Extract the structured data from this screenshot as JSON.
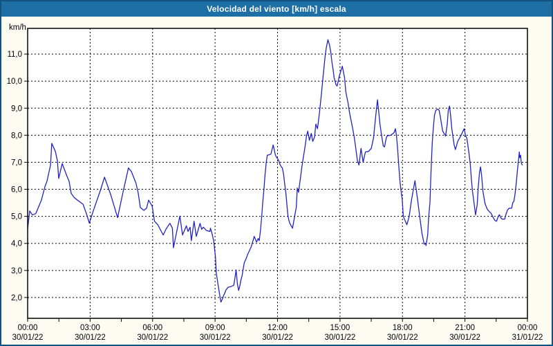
{
  "window": {
    "title": "Velocidad del viento [km/h] escala"
  },
  "chart_data": {
    "type": "line",
    "title": "Velocidad del viento [km/h] escala",
    "ylabel": "km/h",
    "xlabel": "",
    "series_name": "Velocidad del viento",
    "line_color": "#2121c8",
    "grid": "dashed-black",
    "legend": "none",
    "ylim": [
      1.23,
      11.95
    ],
    "xlim_hours": [
      0,
      24
    ],
    "minor_tick_hours": 1.5,
    "y_ticks": [
      {
        "value": 2,
        "label": "2,0"
      },
      {
        "value": 3,
        "label": "3,0"
      },
      {
        "value": 4,
        "label": "4,0"
      },
      {
        "value": 5,
        "label": "5,0"
      },
      {
        "value": 6,
        "label": "6,0"
      },
      {
        "value": 7,
        "label": "7,0"
      },
      {
        "value": 8,
        "label": "8,0"
      },
      {
        "value": 9,
        "label": "9,0"
      },
      {
        "value": 10,
        "label": "10,0"
      },
      {
        "value": 11,
        "label": "11,0"
      }
    ],
    "x_ticks": [
      {
        "hours": 0,
        "time": "00:00",
        "date": "30/01/22"
      },
      {
        "hours": 3,
        "time": "03:00",
        "date": "30/01/22"
      },
      {
        "hours": 6,
        "time": "06:00",
        "date": "30/01/22"
      },
      {
        "hours": 9,
        "time": "09:00",
        "date": "30/01/22"
      },
      {
        "hours": 12,
        "time": "12:00",
        "date": "30/01/22"
      },
      {
        "hours": 15,
        "time": "15:00",
        "date": "30/01/22"
      },
      {
        "hours": 18,
        "time": "18:00",
        "date": "30/01/22"
      },
      {
        "hours": 21,
        "time": "21:00",
        "date": "30/01/22"
      },
      {
        "hours": 24,
        "time": "00:00",
        "date": "31/01/22"
      }
    ],
    "points": [
      [
        0.0,
        4.55
      ],
      [
        0.1,
        5.2
      ],
      [
        0.23,
        5.05
      ],
      [
        0.39,
        5.1
      ],
      [
        0.66,
        5.6
      ],
      [
        0.83,
        6.1
      ],
      [
        0.93,
        6.3
      ],
      [
        1.1,
        6.9
      ],
      [
        1.16,
        7.7
      ],
      [
        1.33,
        7.4
      ],
      [
        1.43,
        7.05
      ],
      [
        1.49,
        6.4
      ],
      [
        1.66,
        6.95
      ],
      [
        1.88,
        6.5
      ],
      [
        1.99,
        6.3
      ],
      [
        2.09,
        5.85
      ],
      [
        2.23,
        5.7
      ],
      [
        2.39,
        5.6
      ],
      [
        2.66,
        5.45
      ],
      [
        2.82,
        5.1
      ],
      [
        2.96,
        4.75
      ],
      [
        3.15,
        5.2
      ],
      [
        3.49,
        5.95
      ],
      [
        3.69,
        6.45
      ],
      [
        3.99,
        5.8
      ],
      [
        4.32,
        4.95
      ],
      [
        4.58,
        5.9
      ],
      [
        4.84,
        6.79
      ],
      [
        4.98,
        6.66
      ],
      [
        5.2,
        6.23
      ],
      [
        5.31,
        5.85
      ],
      [
        5.41,
        5.33
      ],
      [
        5.58,
        5.22
      ],
      [
        5.71,
        5.3
      ],
      [
        5.81,
        5.6
      ],
      [
        5.98,
        5.38
      ],
      [
        6.09,
        4.82
      ],
      [
        6.25,
        4.69
      ],
      [
        6.42,
        4.44
      ],
      [
        6.51,
        4.31
      ],
      [
        6.64,
        4.52
      ],
      [
        6.75,
        4.65
      ],
      [
        6.83,
        4.74
      ],
      [
        6.95,
        4.56
      ],
      [
        7.0,
        3.84
      ],
      [
        7.31,
        5.01
      ],
      [
        7.44,
        4.31
      ],
      [
        7.62,
        4.65
      ],
      [
        7.7,
        4.44
      ],
      [
        7.8,
        4.6
      ],
      [
        7.86,
        4.1
      ],
      [
        7.99,
        4.82
      ],
      [
        8.1,
        4.26
      ],
      [
        8.28,
        4.74
      ],
      [
        8.36,
        4.52
      ],
      [
        8.44,
        4.6
      ],
      [
        8.58,
        4.48
      ],
      [
        8.75,
        4.44
      ],
      [
        8.78,
        4.56
      ],
      [
        8.86,
        4.35
      ],
      [
        8.94,
        4.07
      ],
      [
        9.02,
        3.49
      ],
      [
        9.06,
        2.9
      ],
      [
        9.13,
        2.55
      ],
      [
        9.19,
        2.26
      ],
      [
        9.24,
        2.0
      ],
      [
        9.28,
        1.83
      ],
      [
        9.36,
        1.96
      ],
      [
        9.41,
        2.08
      ],
      [
        9.47,
        2.17
      ],
      [
        9.52,
        2.28
      ],
      [
        9.63,
        2.38
      ],
      [
        9.74,
        2.4
      ],
      [
        9.9,
        2.45
      ],
      [
        9.94,
        2.64
      ],
      [
        10.01,
        3.02
      ],
      [
        10.07,
        2.51
      ],
      [
        10.13,
        2.26
      ],
      [
        10.19,
        2.43
      ],
      [
        10.24,
        2.64
      ],
      [
        10.3,
        2.81
      ],
      [
        10.4,
        3.28
      ],
      [
        10.5,
        3.45
      ],
      [
        10.56,
        3.58
      ],
      [
        10.74,
        3.88
      ],
      [
        10.88,
        4.26
      ],
      [
        10.99,
        4.05
      ],
      [
        11.07,
        4.18
      ],
      [
        11.12,
        4.1
      ],
      [
        11.18,
        4.48
      ],
      [
        11.24,
        4.99
      ],
      [
        11.29,
        5.51
      ],
      [
        11.35,
        6.02
      ],
      [
        11.4,
        6.53
      ],
      [
        11.46,
        7.0
      ],
      [
        11.51,
        7.26
      ],
      [
        11.62,
        7.28
      ],
      [
        11.68,
        7.3
      ],
      [
        11.79,
        7.64
      ],
      [
        11.85,
        7.43
      ],
      [
        11.9,
        7.26
      ],
      [
        11.96,
        7.17
      ],
      [
        12.01,
        7.13
      ],
      [
        12.07,
        7.04
      ],
      [
        12.12,
        6.92
      ],
      [
        12.18,
        6.83
      ],
      [
        12.23,
        6.79
      ],
      [
        12.29,
        6.57
      ],
      [
        12.34,
        6.23
      ],
      [
        12.4,
        5.85
      ],
      [
        12.45,
        5.42
      ],
      [
        12.49,
        5.08
      ],
      [
        12.54,
        4.86
      ],
      [
        12.59,
        4.74
      ],
      [
        12.72,
        4.56
      ],
      [
        12.84,
        5.08
      ],
      [
        12.9,
        5.33
      ],
      [
        12.95,
        6.05
      ],
      [
        13.01,
        5.89
      ],
      [
        13.12,
        6.52
      ],
      [
        13.17,
        6.83
      ],
      [
        13.28,
        7.38
      ],
      [
        13.34,
        7.68
      ],
      [
        13.39,
        7.98
      ],
      [
        13.45,
        8.15
      ],
      [
        13.53,
        7.81
      ],
      [
        13.62,
        8.07
      ],
      [
        13.69,
        7.77
      ],
      [
        13.78,
        7.94
      ],
      [
        13.84,
        8.41
      ],
      [
        13.92,
        8.24
      ],
      [
        14.0,
        8.75
      ],
      [
        14.06,
        9.18
      ],
      [
        14.17,
        10.03
      ],
      [
        14.28,
        10.89
      ],
      [
        14.34,
        11.23
      ],
      [
        14.42,
        11.53
      ],
      [
        14.5,
        11.32
      ],
      [
        14.56,
        11.06
      ],
      [
        14.61,
        10.72
      ],
      [
        14.67,
        10.42
      ],
      [
        14.72,
        10.12
      ],
      [
        14.81,
        9.86
      ],
      [
        14.86,
        9.82
      ],
      [
        14.97,
        10.2
      ],
      [
        15.11,
        10.55
      ],
      [
        15.22,
        10.12
      ],
      [
        15.28,
        9.6
      ],
      [
        15.39,
        9.18
      ],
      [
        15.44,
        8.92
      ],
      [
        15.5,
        8.67
      ],
      [
        15.61,
        8.24
      ],
      [
        15.67,
        7.98
      ],
      [
        15.72,
        7.72
      ],
      [
        15.78,
        7.38
      ],
      [
        15.83,
        7.08
      ],
      [
        15.91,
        6.9
      ],
      [
        16.01,
        7.51
      ],
      [
        16.11,
        7.0
      ],
      [
        16.22,
        7.38
      ],
      [
        16.37,
        7.4
      ],
      [
        16.5,
        7.51
      ],
      [
        16.61,
        7.9
      ],
      [
        16.72,
        8.75
      ],
      [
        16.8,
        9.31
      ],
      [
        16.92,
        8.41
      ],
      [
        17.0,
        7.98
      ],
      [
        17.08,
        7.6
      ],
      [
        17.14,
        7.57
      ],
      [
        17.22,
        7.9
      ],
      [
        17.27,
        7.98
      ],
      [
        17.44,
        8.0
      ],
      [
        17.6,
        8.1
      ],
      [
        17.66,
        8.24
      ],
      [
        17.71,
        8.0
      ],
      [
        17.77,
        7.47
      ],
      [
        17.82,
        6.9
      ],
      [
        17.88,
        6.3
      ],
      [
        17.93,
        5.95
      ],
      [
        17.99,
        5.62
      ],
      [
        18.04,
        4.99
      ],
      [
        18.21,
        4.69
      ],
      [
        18.32,
        4.99
      ],
      [
        18.43,
        5.59
      ],
      [
        18.6,
        6.32
      ],
      [
        18.71,
        5.72
      ],
      [
        18.82,
        5.03
      ],
      [
        18.93,
        4.39
      ],
      [
        19.04,
        3.97
      ],
      [
        19.1,
        4.01
      ],
      [
        19.13,
        3.92
      ],
      [
        19.21,
        4.31
      ],
      [
        19.26,
        4.99
      ],
      [
        19.32,
        5.51
      ],
      [
        19.37,
        6.62
      ],
      [
        19.43,
        7.72
      ],
      [
        19.49,
        8.33
      ],
      [
        19.54,
        8.75
      ],
      [
        19.6,
        8.92
      ],
      [
        19.7,
        8.97
      ],
      [
        19.76,
        8.92
      ],
      [
        19.82,
        8.67
      ],
      [
        19.93,
        8.15
      ],
      [
        20.07,
        7.97
      ],
      [
        20.15,
        8.41
      ],
      [
        20.2,
        8.92
      ],
      [
        20.26,
        9.08
      ],
      [
        20.32,
        8.67
      ],
      [
        20.37,
        8.24
      ],
      [
        20.43,
        7.9
      ],
      [
        20.48,
        7.64
      ],
      [
        20.54,
        7.47
      ],
      [
        20.59,
        7.6
      ],
      [
        20.65,
        7.77
      ],
      [
        20.81,
        7.99
      ],
      [
        20.96,
        8.24
      ],
      [
        21.03,
        7.99
      ],
      [
        21.09,
        7.9
      ],
      [
        21.14,
        7.64
      ],
      [
        21.2,
        7.3
      ],
      [
        21.25,
        6.96
      ],
      [
        21.31,
        6.36
      ],
      [
        21.36,
        5.93
      ],
      [
        21.42,
        5.59
      ],
      [
        21.51,
        5.05
      ],
      [
        21.59,
        5.45
      ],
      [
        21.64,
        6.1
      ],
      [
        21.7,
        6.62
      ],
      [
        21.75,
        6.83
      ],
      [
        21.81,
        6.44
      ],
      [
        21.86,
        5.95
      ],
      [
        21.92,
        5.67
      ],
      [
        21.97,
        5.46
      ],
      [
        22.08,
        5.25
      ],
      [
        22.19,
        5.16
      ],
      [
        22.25,
        5.12
      ],
      [
        22.36,
        4.95
      ],
      [
        22.45,
        4.84
      ],
      [
        22.52,
        4.82
      ],
      [
        22.6,
        5.0
      ],
      [
        22.66,
        5.06
      ],
      [
        22.72,
        4.95
      ],
      [
        22.79,
        4.9
      ],
      [
        22.91,
        4.9
      ],
      [
        22.97,
        5.08
      ],
      [
        23.04,
        5.23
      ],
      [
        23.12,
        5.3
      ],
      [
        23.24,
        5.3
      ],
      [
        23.3,
        5.51
      ],
      [
        23.35,
        5.55
      ],
      [
        23.41,
        5.85
      ],
      [
        23.47,
        6.27
      ],
      [
        23.52,
        6.7
      ],
      [
        23.58,
        7.13
      ],
      [
        23.61,
        7.38
      ],
      [
        23.63,
        7.17
      ],
      [
        23.67,
        7.26
      ],
      [
        23.69,
        7.08
      ],
      [
        23.71,
        6.96
      ],
      [
        23.75,
        6.9
      ]
    ]
  }
}
